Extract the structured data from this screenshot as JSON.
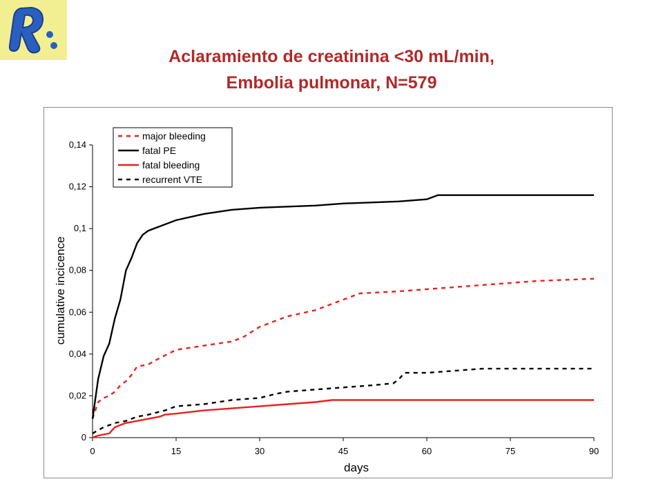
{
  "header": {
    "title_line1": "Aclaramiento de creatinina <30 mL/min,",
    "title_line2": "Embolia pulmonar, N=579",
    "logo_letter": "R"
  },
  "colors": {
    "title": "#b02a2a",
    "red": "#e8201c",
    "black": "#000000",
    "logo_bg": "#f2ef93",
    "logo_blue": "#2a5fbf"
  },
  "chart_data": {
    "type": "line",
    "title": "",
    "xlabel": "days",
    "ylabel": "cumulative incicence",
    "xlim": [
      0,
      90
    ],
    "ylim": [
      0,
      0.14
    ],
    "x_ticks": [
      0,
      15,
      30,
      45,
      60,
      75,
      90
    ],
    "y_ticks": [
      0,
      0.02,
      0.04,
      0.06,
      0.08,
      0.1,
      0.12,
      0.14
    ],
    "y_tick_labels": [
      "0",
      "0,02",
      "0,04",
      "0,06",
      "0,08",
      "0,1",
      "0,12",
      "0,14"
    ],
    "x_tick_labels": [
      "0",
      "15",
      "30",
      "45",
      "60",
      "75",
      "90"
    ],
    "grid": false,
    "legend_position": "top-left",
    "series": [
      {
        "name": "major bleeding",
        "color": "#e8201c",
        "dash": "dashed",
        "points": [
          [
            0,
            0.009
          ],
          [
            1,
            0.017
          ],
          [
            2,
            0.019
          ],
          [
            3,
            0.02
          ],
          [
            4,
            0.022
          ],
          [
            5,
            0.025
          ],
          [
            6,
            0.027
          ],
          [
            7,
            0.03
          ],
          [
            8,
            0.034
          ],
          [
            10,
            0.035
          ],
          [
            12,
            0.038
          ],
          [
            15,
            0.042
          ],
          [
            20,
            0.044
          ],
          [
            25,
            0.046
          ],
          [
            27,
            0.048
          ],
          [
            30,
            0.053
          ],
          [
            33,
            0.056
          ],
          [
            35,
            0.058
          ],
          [
            40,
            0.061
          ],
          [
            43,
            0.064
          ],
          [
            45,
            0.066
          ],
          [
            48,
            0.069
          ],
          [
            55,
            0.07
          ],
          [
            60,
            0.071
          ],
          [
            70,
            0.073
          ],
          [
            80,
            0.075
          ],
          [
            90,
            0.076
          ]
        ]
      },
      {
        "name": "fatal PE",
        "color": "#000000",
        "dash": "solid",
        "points": [
          [
            0,
            0.009
          ],
          [
            1,
            0.028
          ],
          [
            2,
            0.039
          ],
          [
            3,
            0.045
          ],
          [
            4,
            0.057
          ],
          [
            5,
            0.066
          ],
          [
            6,
            0.08
          ],
          [
            7,
            0.086
          ],
          [
            8,
            0.093
          ],
          [
            9,
            0.097
          ],
          [
            10,
            0.099
          ],
          [
            12,
            0.101
          ],
          [
            15,
            0.104
          ],
          [
            20,
            0.107
          ],
          [
            25,
            0.109
          ],
          [
            30,
            0.11
          ],
          [
            40,
            0.111
          ],
          [
            45,
            0.112
          ],
          [
            55,
            0.113
          ],
          [
            60,
            0.114
          ],
          [
            62,
            0.116
          ],
          [
            75,
            0.116
          ],
          [
            90,
            0.116
          ]
        ]
      },
      {
        "name": "fatal bleeding",
        "color": "#e8201c",
        "dash": "solid",
        "points": [
          [
            0,
            0.0
          ],
          [
            1,
            0.001
          ],
          [
            3,
            0.002
          ],
          [
            4,
            0.005
          ],
          [
            5,
            0.006
          ],
          [
            6,
            0.007
          ],
          [
            8,
            0.008
          ],
          [
            10,
            0.009
          ],
          [
            12,
            0.01
          ],
          [
            13,
            0.011
          ],
          [
            15,
            0.0115
          ],
          [
            20,
            0.013
          ],
          [
            25,
            0.014
          ],
          [
            30,
            0.015
          ],
          [
            35,
            0.016
          ],
          [
            40,
            0.017
          ],
          [
            43,
            0.018
          ],
          [
            60,
            0.018
          ],
          [
            75,
            0.018
          ],
          [
            90,
            0.018
          ]
        ]
      },
      {
        "name": "recurrent VTE",
        "color": "#000000",
        "dash": "dashed",
        "points": [
          [
            0,
            0.002
          ],
          [
            2,
            0.005
          ],
          [
            4,
            0.007
          ],
          [
            6,
            0.008
          ],
          [
            8,
            0.01
          ],
          [
            10,
            0.011
          ],
          [
            13,
            0.013
          ],
          [
            15,
            0.015
          ],
          [
            20,
            0.016
          ],
          [
            25,
            0.018
          ],
          [
            30,
            0.019
          ],
          [
            33,
            0.021
          ],
          [
            35,
            0.022
          ],
          [
            40,
            0.023
          ],
          [
            45,
            0.024
          ],
          [
            50,
            0.025
          ],
          [
            54,
            0.026
          ],
          [
            55,
            0.028
          ],
          [
            56,
            0.031
          ],
          [
            60,
            0.031
          ],
          [
            65,
            0.032
          ],
          [
            70,
            0.033
          ],
          [
            80,
            0.033
          ],
          [
            90,
            0.033
          ]
        ]
      }
    ]
  }
}
